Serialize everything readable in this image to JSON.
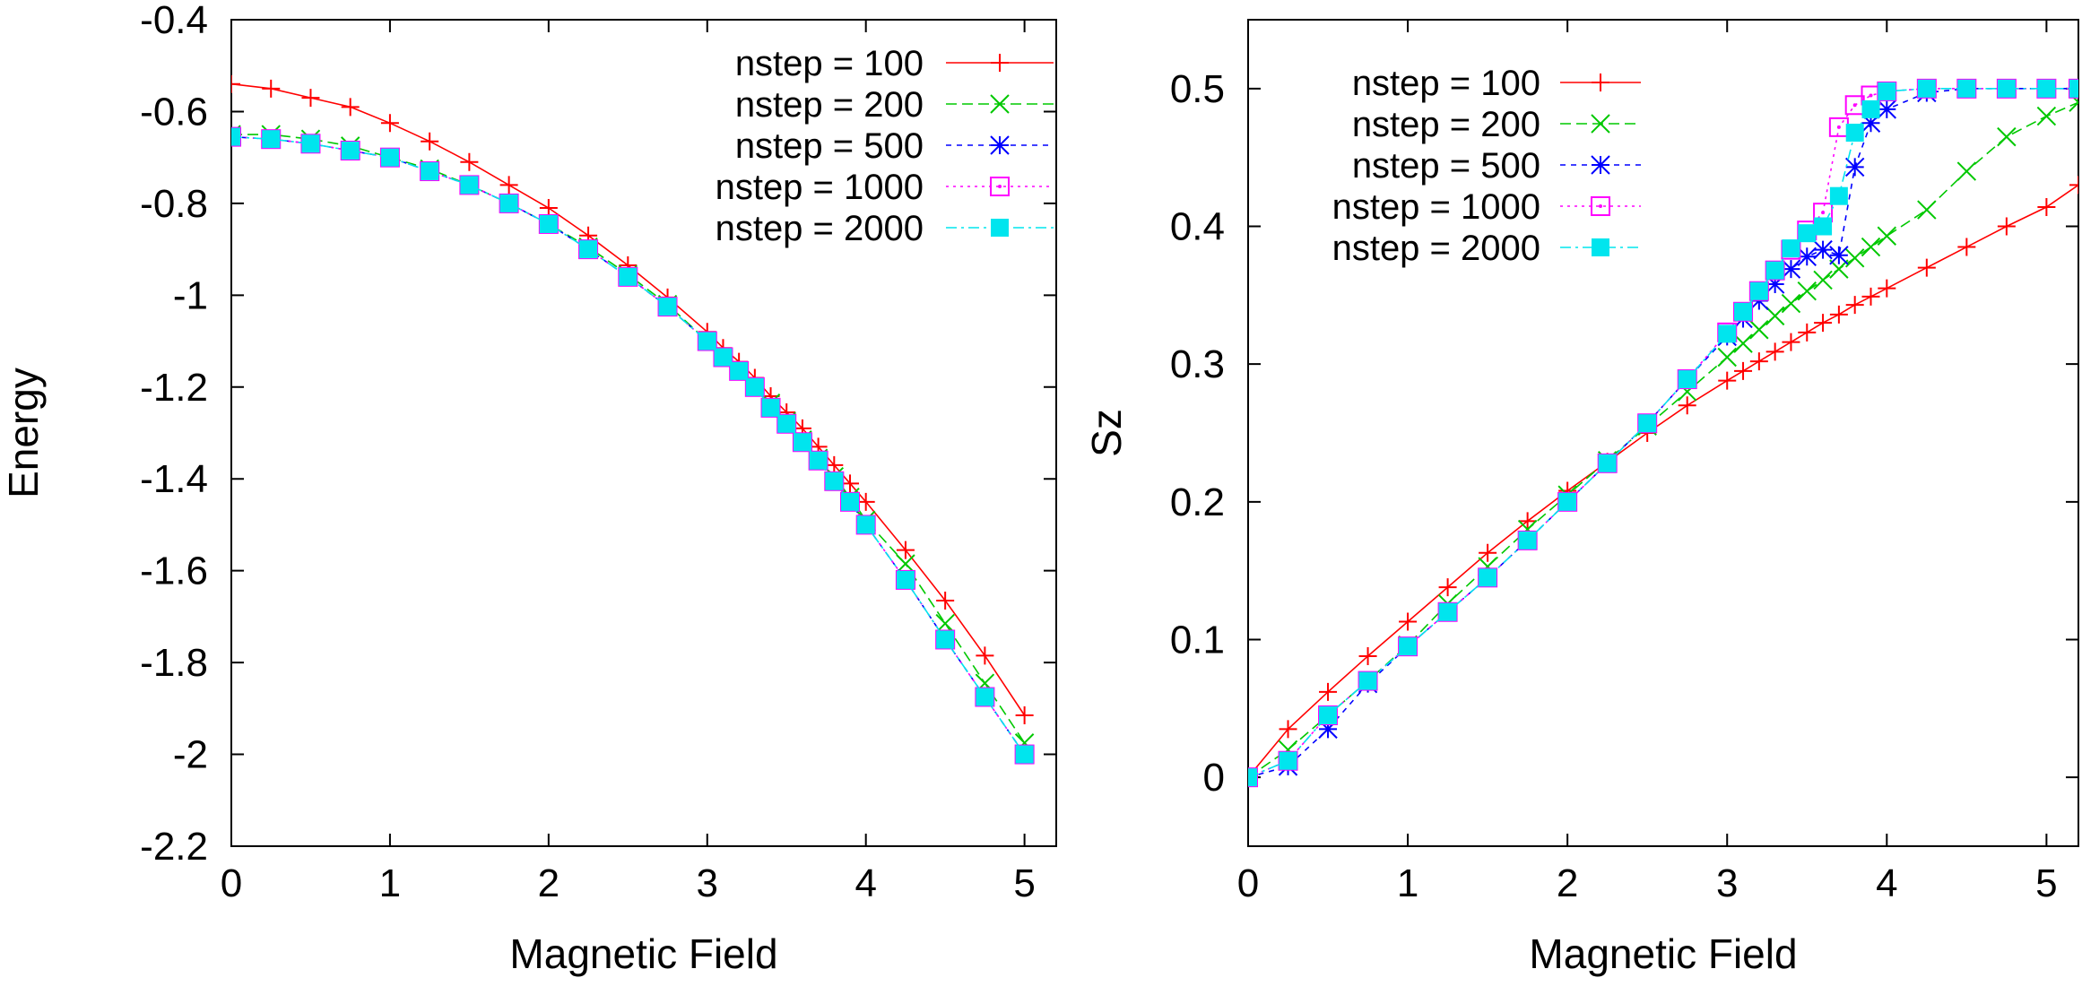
{
  "chart_data": [
    {
      "type": "line",
      "xlabel": "Magnetic Field",
      "ylabel": "Energy",
      "xlim": [
        0,
        5.2
      ],
      "ylim": [
        -2.2,
        -0.4
      ],
      "xticks": [
        0,
        1,
        2,
        3,
        4,
        5
      ],
      "yticks": [
        -0.4,
        -0.6,
        -0.8,
        -1,
        -1.2,
        -1.4,
        -1.6,
        -1.8,
        -2,
        -2.2
      ],
      "legend_position": "top-right",
      "series": [
        {
          "name": "nstep = 100",
          "color": "#ff0000",
          "dash": "",
          "marker": "plus",
          "x": [
            0,
            0.25,
            0.5,
            0.75,
            1.0,
            1.25,
            1.5,
            1.75,
            2.0,
            2.25,
            2.5,
            2.75,
            3.0,
            3.1,
            3.2,
            3.3,
            3.4,
            3.5,
            3.6,
            3.7,
            3.8,
            3.9,
            4.0,
            4.25,
            4.5,
            4.75,
            5.0
          ],
          "y": [
            -0.54,
            -0.55,
            -0.57,
            -0.59,
            -0.625,
            -0.665,
            -0.71,
            -0.76,
            -0.81,
            -0.87,
            -0.935,
            -1.005,
            -1.08,
            -1.115,
            -1.145,
            -1.18,
            -1.22,
            -1.255,
            -1.29,
            -1.33,
            -1.37,
            -1.41,
            -1.45,
            -1.555,
            -1.665,
            -1.785,
            -1.915
          ]
        },
        {
          "name": "nstep = 200",
          "color": "#00c800",
          "dash": "12 6",
          "marker": "cross",
          "x": [
            0,
            0.25,
            0.5,
            0.75,
            1.0,
            1.25,
            1.5,
            1.75,
            2.0,
            2.25,
            2.5,
            2.75,
            3.0,
            3.1,
            3.2,
            3.3,
            3.4,
            3.5,
            3.6,
            3.7,
            3.8,
            3.9,
            4.0,
            4.25,
            4.5,
            4.75,
            5.0
          ],
          "y": [
            -0.65,
            -0.65,
            -0.66,
            -0.675,
            -0.7,
            -0.725,
            -0.76,
            -0.8,
            -0.845,
            -0.895,
            -0.955,
            -1.02,
            -1.1,
            -1.135,
            -1.165,
            -1.2,
            -1.235,
            -1.275,
            -1.315,
            -1.355,
            -1.395,
            -1.44,
            -1.49,
            -1.585,
            -1.715,
            -1.845,
            -1.975
          ]
        },
        {
          "name": "nstep = 500",
          "color": "#0000ff",
          "dash": "6 6",
          "marker": "star",
          "x": [
            0,
            0.25,
            0.5,
            0.75,
            1.0,
            1.25,
            1.5,
            1.75,
            2.0,
            2.25,
            2.5,
            2.75,
            3.0,
            3.1,
            3.2,
            3.3,
            3.4,
            3.5,
            3.6,
            3.7,
            3.8,
            3.9,
            4.0,
            4.25,
            4.5,
            4.75,
            5.0
          ],
          "y": [
            -0.655,
            -0.66,
            -0.67,
            -0.685,
            -0.7,
            -0.73,
            -0.76,
            -0.8,
            -0.845,
            -0.9,
            -0.96,
            -1.025,
            -1.1,
            -1.135,
            -1.165,
            -1.2,
            -1.245,
            -1.28,
            -1.32,
            -1.36,
            -1.405,
            -1.45,
            -1.5,
            -1.62,
            -1.75,
            -1.875,
            -2.0
          ]
        },
        {
          "name": "nstep = 1000",
          "color": "#ff00ff",
          "dash": "3 5",
          "marker": "boxdot",
          "x": [
            0,
            0.25,
            0.5,
            0.75,
            1.0,
            1.25,
            1.5,
            1.75,
            2.0,
            2.25,
            2.5,
            2.75,
            3.0,
            3.1,
            3.2,
            3.3,
            3.4,
            3.5,
            3.6,
            3.7,
            3.8,
            3.9,
            4.0,
            4.25,
            4.5,
            4.75,
            5.0
          ],
          "y": [
            -0.655,
            -0.66,
            -0.67,
            -0.685,
            -0.7,
            -0.73,
            -0.76,
            -0.8,
            -0.845,
            -0.9,
            -0.96,
            -1.025,
            -1.1,
            -1.135,
            -1.165,
            -1.2,
            -1.245,
            -1.28,
            -1.32,
            -1.36,
            -1.405,
            -1.45,
            -1.5,
            -1.62,
            -1.75,
            -1.875,
            -2.0
          ]
        },
        {
          "name": "nstep = 2000",
          "color": "#00e5ee",
          "dash": "12 5 3 5",
          "marker": "filled-square",
          "x": [
            0,
            0.25,
            0.5,
            0.75,
            1.0,
            1.25,
            1.5,
            1.75,
            2.0,
            2.25,
            2.5,
            2.75,
            3.0,
            3.1,
            3.2,
            3.3,
            3.4,
            3.5,
            3.6,
            3.7,
            3.8,
            3.9,
            4.0,
            4.25,
            4.5,
            4.75,
            5.0
          ],
          "y": [
            -0.655,
            -0.66,
            -0.67,
            -0.685,
            -0.7,
            -0.73,
            -0.76,
            -0.8,
            -0.845,
            -0.9,
            -0.96,
            -1.025,
            -1.1,
            -1.135,
            -1.165,
            -1.2,
            -1.245,
            -1.28,
            -1.32,
            -1.36,
            -1.405,
            -1.45,
            -1.5,
            -1.62,
            -1.75,
            -1.875,
            -2.0
          ]
        }
      ]
    },
    {
      "type": "line",
      "xlabel": "Magnetic Field",
      "ylabel": "Sz",
      "xlim": [
        0,
        5.2
      ],
      "ylim": [
        -0.05,
        0.55
      ],
      "xticks": [
        0,
        1,
        2,
        3,
        4,
        5
      ],
      "yticks": [
        0,
        0.1,
        0.2,
        0.3,
        0.4,
        0.5
      ],
      "legend_position": "top-left",
      "series": [
        {
          "name": "nstep = 100",
          "color": "#ff0000",
          "dash": "",
          "marker": "plus",
          "x": [
            0,
            0.25,
            0.5,
            0.75,
            1.0,
            1.25,
            1.5,
            1.75,
            2.0,
            2.25,
            2.5,
            2.75,
            3.0,
            3.1,
            3.2,
            3.3,
            3.4,
            3.5,
            3.6,
            3.7,
            3.8,
            3.9,
            4.0,
            4.25,
            4.5,
            4.75,
            5.0,
            5.2
          ],
          "y": [
            0,
            0.035,
            0.062,
            0.088,
            0.113,
            0.138,
            0.163,
            0.186,
            0.208,
            0.229,
            0.25,
            0.27,
            0.288,
            0.295,
            0.302,
            0.309,
            0.316,
            0.323,
            0.33,
            0.336,
            0.343,
            0.349,
            0.355,
            0.37,
            0.385,
            0.4,
            0.414,
            0.43
          ]
        },
        {
          "name": "nstep = 200",
          "color": "#00c800",
          "dash": "12 6",
          "marker": "cross",
          "x": [
            0,
            0.25,
            0.5,
            0.75,
            1.0,
            1.25,
            1.5,
            1.75,
            2.0,
            2.25,
            2.5,
            2.75,
            3.0,
            3.1,
            3.2,
            3.3,
            3.4,
            3.5,
            3.6,
            3.7,
            3.8,
            3.9,
            4.0,
            4.25,
            4.5,
            4.75,
            5.0,
            5.2
          ],
          "y": [
            0,
            0.02,
            0.045,
            0.07,
            0.096,
            0.126,
            0.153,
            0.18,
            0.205,
            0.23,
            0.255,
            0.28,
            0.305,
            0.315,
            0.325,
            0.335,
            0.344,
            0.353,
            0.361,
            0.369,
            0.377,
            0.385,
            0.393,
            0.412,
            0.44,
            0.465,
            0.48,
            0.49
          ]
        },
        {
          "name": "nstep = 500",
          "color": "#0000ff",
          "dash": "6 6",
          "marker": "star",
          "x": [
            0,
            0.25,
            0.5,
            0.75,
            1.0,
            1.25,
            1.5,
            1.75,
            2.0,
            2.25,
            2.5,
            2.75,
            3.0,
            3.1,
            3.2,
            3.3,
            3.4,
            3.5,
            3.6,
            3.7,
            3.8,
            3.9,
            4.0,
            4.25,
            4.5,
            4.75,
            5.0,
            5.2
          ],
          "y": [
            0,
            0.008,
            0.035,
            0.068,
            0.095,
            0.12,
            0.145,
            0.172,
            0.2,
            0.228,
            0.257,
            0.289,
            0.32,
            0.333,
            0.346,
            0.358,
            0.369,
            0.378,
            0.383,
            0.379,
            0.443,
            0.475,
            0.485,
            0.497,
            0.5,
            0.5,
            0.5,
            0.5
          ]
        },
        {
          "name": "nstep = 1000",
          "color": "#ff00ff",
          "dash": "3 5",
          "marker": "boxdot",
          "x": [
            0,
            0.25,
            0.5,
            0.75,
            1.0,
            1.25,
            1.5,
            1.75,
            2.0,
            2.25,
            2.5,
            2.75,
            3.0,
            3.1,
            3.2,
            3.3,
            3.4,
            3.5,
            3.6,
            3.7,
            3.8,
            3.9,
            4.0,
            4.25,
            4.5,
            4.75,
            5.0,
            5.2
          ],
          "y": [
            0,
            0.012,
            0.045,
            0.07,
            0.095,
            0.12,
            0.145,
            0.172,
            0.2,
            0.228,
            0.257,
            0.289,
            0.323,
            0.338,
            0.353,
            0.368,
            0.383,
            0.397,
            0.41,
            0.472,
            0.488,
            0.495,
            0.498,
            0.5,
            0.5,
            0.5,
            0.5,
            0.5
          ]
        },
        {
          "name": "nstep = 2000",
          "color": "#00e5ee",
          "dash": "12 5 3 5",
          "marker": "filled-square",
          "x": [
            0,
            0.25,
            0.5,
            0.75,
            1.0,
            1.25,
            1.5,
            1.75,
            2.0,
            2.25,
            2.5,
            2.75,
            3.0,
            3.1,
            3.2,
            3.3,
            3.4,
            3.5,
            3.6,
            3.7,
            3.8,
            3.9,
            4.0,
            4.25,
            4.5,
            4.75,
            5.0,
            5.2
          ],
          "y": [
            0,
            0.012,
            0.045,
            0.07,
            0.095,
            0.12,
            0.145,
            0.172,
            0.2,
            0.228,
            0.257,
            0.289,
            0.322,
            0.338,
            0.353,
            0.368,
            0.384,
            0.395,
            0.4,
            0.422,
            0.468,
            0.485,
            0.498,
            0.5,
            0.5,
            0.5,
            0.5,
            0.5
          ]
        }
      ]
    }
  ]
}
